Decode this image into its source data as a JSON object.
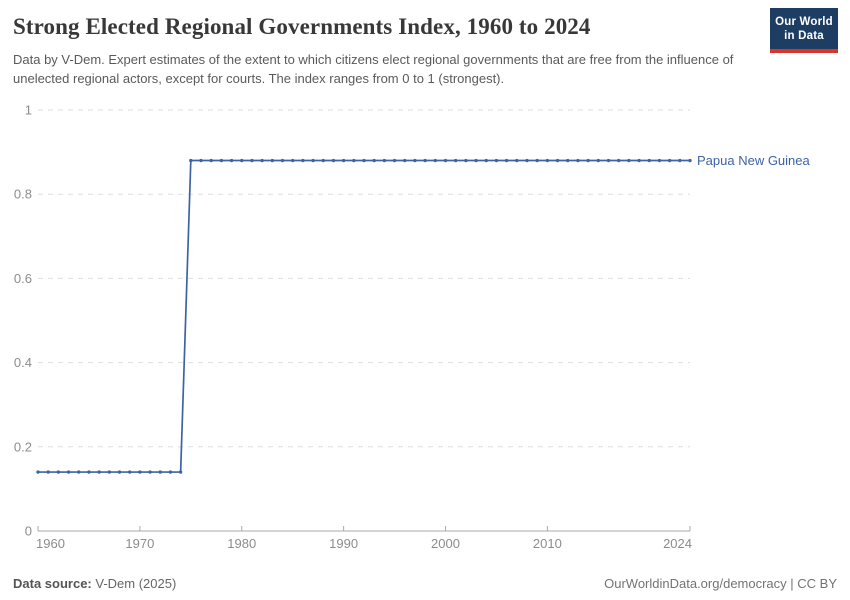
{
  "header": {
    "title": "Strong Elected Regional Governments Index, 1960 to 2024",
    "subtitle": "Data by V-Dem. Expert estimates of the extent to which citizens elect regional governments that are free from the influence of unelected regional actors, except for courts. The index ranges from 0 to 1 (strongest).",
    "logo": {
      "line1": "Our World",
      "line2": "in Data",
      "bg_color": "#1d3d63",
      "accent_color": "#d8352f"
    }
  },
  "chart_data": {
    "type": "line",
    "title": "Strong Elected Regional Governments Index, 1960 to 2024",
    "xlabel": "",
    "ylabel": "",
    "x_axis": {
      "range": [
        1960,
        2024
      ],
      "ticks": [
        1960,
        1970,
        1980,
        1990,
        2000,
        2010,
        2024
      ]
    },
    "y_axis": {
      "range": [
        0,
        1
      ],
      "ticks": [
        0,
        0.2,
        0.4,
        0.6,
        0.8,
        1
      ],
      "tick_labels": [
        "0",
        "0.2",
        "0.4",
        "0.6",
        "0.8",
        "1"
      ],
      "gridlines": "dashed"
    },
    "legend_position": "end-of-line-label",
    "style": {
      "grid_color": "#dedede",
      "axis_color": "#a9a9a9",
      "tick_label_color": "#8c8c8c"
    },
    "series": [
      {
        "name": "Papua New Guinea",
        "color": "#3d63a5",
        "points": [
          [
            1960,
            0.14
          ],
          [
            1961,
            0.14
          ],
          [
            1962,
            0.14
          ],
          [
            1963,
            0.14
          ],
          [
            1964,
            0.14
          ],
          [
            1965,
            0.14
          ],
          [
            1966,
            0.14
          ],
          [
            1967,
            0.14
          ],
          [
            1968,
            0.14
          ],
          [
            1969,
            0.14
          ],
          [
            1970,
            0.14
          ],
          [
            1971,
            0.14
          ],
          [
            1972,
            0.14
          ],
          [
            1973,
            0.14
          ],
          [
            1974,
            0.14
          ],
          [
            1975,
            0.88
          ],
          [
            1976,
            0.88
          ],
          [
            1977,
            0.88
          ],
          [
            1978,
            0.88
          ],
          [
            1979,
            0.88
          ],
          [
            1980,
            0.88
          ],
          [
            1981,
            0.88
          ],
          [
            1982,
            0.88
          ],
          [
            1983,
            0.88
          ],
          [
            1984,
            0.88
          ],
          [
            1985,
            0.88
          ],
          [
            1986,
            0.88
          ],
          [
            1987,
            0.88
          ],
          [
            1988,
            0.88
          ],
          [
            1989,
            0.88
          ],
          [
            1990,
            0.88
          ],
          [
            1991,
            0.88
          ],
          [
            1992,
            0.88
          ],
          [
            1993,
            0.88
          ],
          [
            1994,
            0.88
          ],
          [
            1995,
            0.88
          ],
          [
            1996,
            0.88
          ],
          [
            1997,
            0.88
          ],
          [
            1998,
            0.88
          ],
          [
            1999,
            0.88
          ],
          [
            2000,
            0.88
          ],
          [
            2001,
            0.88
          ],
          [
            2002,
            0.88
          ],
          [
            2003,
            0.88
          ],
          [
            2004,
            0.88
          ],
          [
            2005,
            0.88
          ],
          [
            2006,
            0.88
          ],
          [
            2007,
            0.88
          ],
          [
            2008,
            0.88
          ],
          [
            2009,
            0.88
          ],
          [
            2010,
            0.88
          ],
          [
            2011,
            0.88
          ],
          [
            2012,
            0.88
          ],
          [
            2013,
            0.88
          ],
          [
            2014,
            0.88
          ],
          [
            2015,
            0.88
          ],
          [
            2016,
            0.88
          ],
          [
            2017,
            0.88
          ],
          [
            2018,
            0.88
          ],
          [
            2019,
            0.88
          ],
          [
            2020,
            0.88
          ],
          [
            2021,
            0.88
          ],
          [
            2022,
            0.88
          ],
          [
            2023,
            0.88
          ],
          [
            2024,
            0.88
          ]
        ]
      }
    ]
  },
  "footer": {
    "source_label": "Data source:",
    "source_value": " V-Dem (2025)",
    "credit": "OurWorldinData.org/democracy | CC BY"
  }
}
